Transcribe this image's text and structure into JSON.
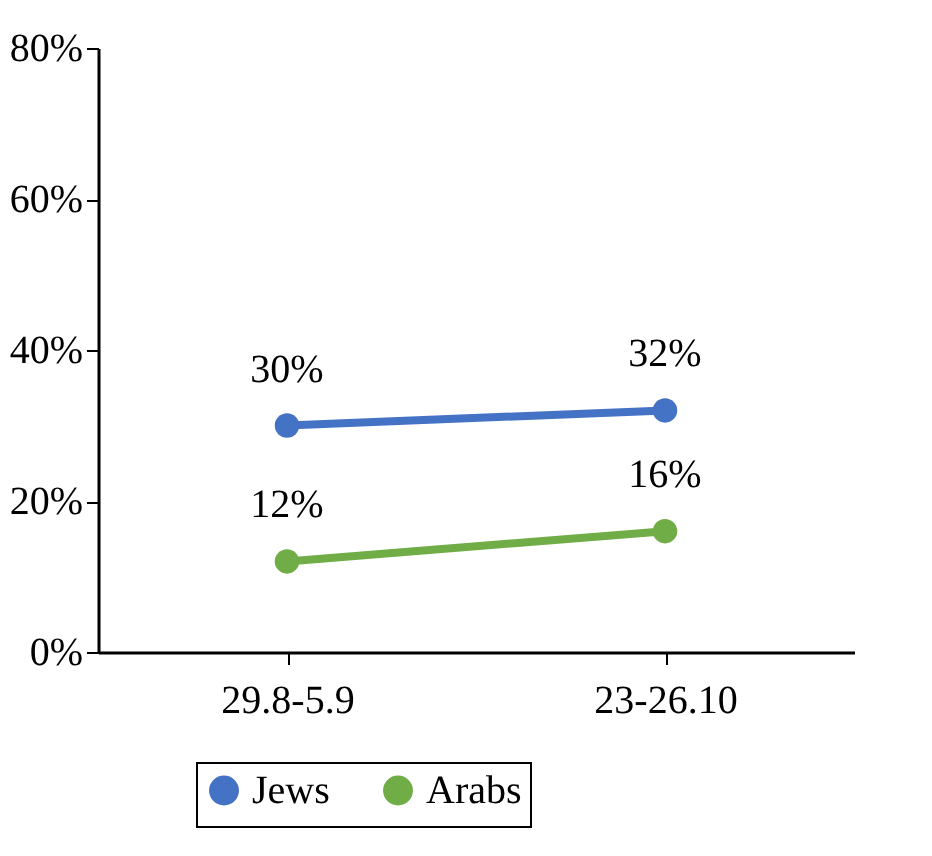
{
  "chart_data": {
    "type": "line",
    "categories": [
      "29.8-5.9",
      "23-26.10"
    ],
    "series": [
      {
        "name": "Jews",
        "color": "#4472c4",
        "values": [
          30,
          32
        ],
        "value_labels": [
          "30%",
          "32%"
        ]
      },
      {
        "name": "Arabs",
        "color": "#70ad47",
        "values": [
          12,
          16
        ],
        "value_labels": [
          "12%",
          "16%"
        ]
      }
    ],
    "ylim": [
      0,
      80
    ],
    "yticks": [
      {
        "value": 0,
        "label": "0%"
      },
      {
        "value": 20,
        "label": "20%"
      },
      {
        "value": 40,
        "label": "40%"
      },
      {
        "value": 60,
        "label": "60%"
      },
      {
        "value": 80,
        "label": "80%"
      }
    ],
    "grid": false,
    "legend": "bottom",
    "marker": "circle",
    "line_style": "solid"
  }
}
